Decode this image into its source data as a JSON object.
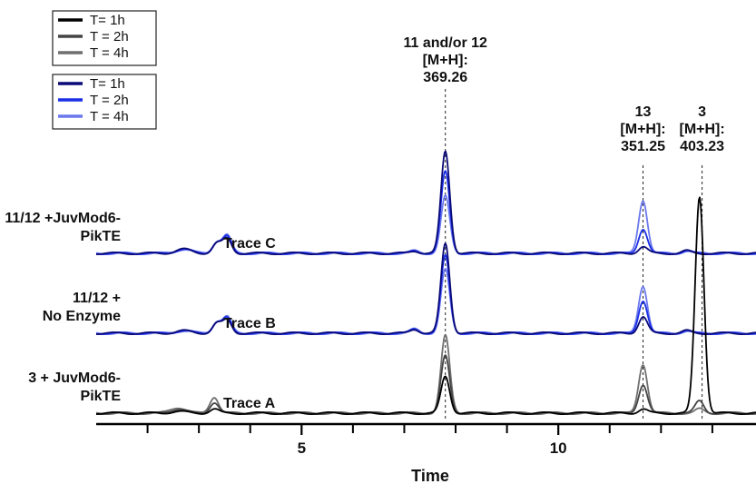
{
  "chart_data": {
    "type": "line",
    "title": "",
    "xlabel": "Time",
    "ylabel": "",
    "xlim": [
      1,
      13.85
    ],
    "x_ticks_major": [
      5,
      10
    ],
    "x_tick_labels": [
      "5",
      "10"
    ],
    "x_ticks_minor": [
      2,
      3,
      4,
      6,
      7,
      8,
      9,
      11,
      12,
      13
    ],
    "grid": false,
    "legend_placement": "top-left",
    "legends": [
      {
        "name": "black-legend",
        "entries": [
          {
            "label": "T= 1h",
            "color": "#000000"
          },
          {
            "label": "T = 2h",
            "color": "#444444"
          },
          {
            "label": "T = 4h",
            "color": "#6f6f6f"
          }
        ]
      },
      {
        "name": "blue-legend",
        "entries": [
          {
            "label": "T= 1h",
            "color": "#0a0a78"
          },
          {
            "label": "T = 2h",
            "color": "#1a2ee6"
          },
          {
            "label": "T = 4h",
            "color": "#6b78ee"
          }
        ]
      }
    ],
    "reference_lines": [
      {
        "x": 7.8,
        "label_lines": [
          "11 and/or 12",
          "[M+H]:",
          "369.26"
        ]
      },
      {
        "x": 11.65,
        "label_lines": [
          "13",
          "[M+H]:",
          "351.25"
        ]
      },
      {
        "x": 12.8,
        "label_lines": [
          "3",
          "[M+H]:",
          "403.23"
        ]
      }
    ],
    "traces": [
      {
        "trace_label": "Trace C",
        "sample_label_lines": [
          "11/12 +JuvMod6-",
          "PikTE"
        ],
        "offset": 2.0,
        "peaks_x": [
          2.7,
          3.35,
          3.55,
          7.2,
          7.8,
          11.65,
          12.5
        ],
        "series": [
          {
            "name": "T= 1h",
            "color": "#0a0a78",
            "peak_heights": [
              0.05,
              0.12,
              0.18,
              0.03,
              1.25,
              0.08,
              0.03
            ]
          },
          {
            "name": "T = 2h",
            "color": "#1a2ee6",
            "peak_heights": [
              0.05,
              0.13,
              0.2,
              0.03,
              1.0,
              0.3,
              0.03
            ]
          },
          {
            "name": "T = 4h",
            "color": "#6b78ee",
            "peak_heights": [
              0.05,
              0.14,
              0.22,
              0.03,
              0.7,
              0.65,
              0.03
            ]
          }
        ]
      },
      {
        "trace_label": "Trace B",
        "sample_label_lines": [
          "11/12 +",
          "No Enzyme"
        ],
        "offset": 1.0,
        "peaks_x": [
          2.7,
          3.35,
          3.55,
          7.2,
          7.8,
          11.65,
          12.5
        ],
        "series": [
          {
            "name": "T= 1h",
            "color": "#0a0a78",
            "peak_heights": [
              0.03,
              0.12,
              0.16,
              0.05,
              1.1,
              0.2,
              0.03
            ]
          },
          {
            "name": "T = 2h",
            "color": "#1a2ee6",
            "peak_heights": [
              0.03,
              0.13,
              0.18,
              0.05,
              0.95,
              0.4,
              0.03
            ]
          },
          {
            "name": "T = 4h",
            "color": "#6b78ee",
            "peak_heights": [
              0.03,
              0.14,
              0.2,
              0.05,
              0.78,
              0.58,
              0.03
            ]
          }
        ]
      },
      {
        "trace_label": "Trace A",
        "sample_label_lines": [
          "3 + JuvMod6-",
          "PikTE"
        ],
        "offset": 0.0,
        "peaks_x": [
          2.6,
          3.3,
          7.8,
          11.65,
          12.75
        ],
        "series": [
          {
            "name": "T= 1h",
            "color": "#000000",
            "peak_heights": [
              0.02,
              0.05,
              0.45,
              0.05,
              2.65
            ]
          },
          {
            "name": "T = 2h",
            "color": "#444444",
            "peak_heights": [
              0.05,
              0.13,
              0.7,
              0.35,
              0.15
            ]
          },
          {
            "name": "T = 4h",
            "color": "#6f6f6f",
            "peak_heights": [
              0.07,
              0.2,
              0.95,
              0.6,
              0.05
            ]
          }
        ]
      }
    ]
  }
}
